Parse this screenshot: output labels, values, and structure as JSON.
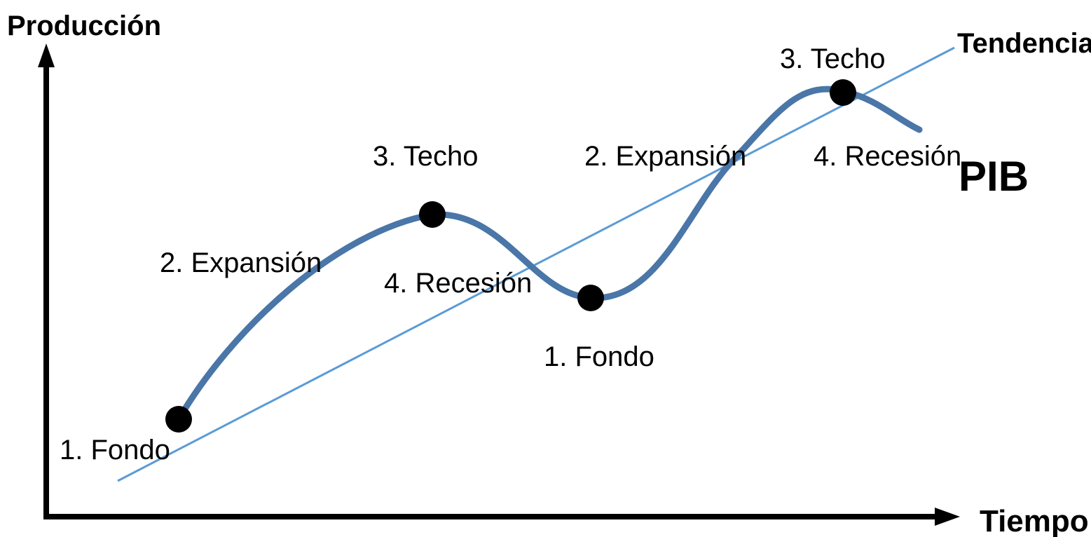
{
  "axes": {
    "y_label": "Producción",
    "x_label": "Tiempo"
  },
  "series": {
    "main_label": "PIB",
    "trend_label": "Tendencia",
    "main_color": "#4a76a8",
    "trend_color": "#5b9bd5"
  },
  "phases": [
    {
      "label": "1. Fondo"
    },
    {
      "label": "2. Expansión"
    },
    {
      "label": "3. Techo"
    },
    {
      "label": "4. Recesión"
    },
    {
      "label": "1. Fondo"
    },
    {
      "label": "2. Expansión"
    },
    {
      "label": "3. Techo"
    },
    {
      "label": "4. Recesión"
    }
  ]
}
